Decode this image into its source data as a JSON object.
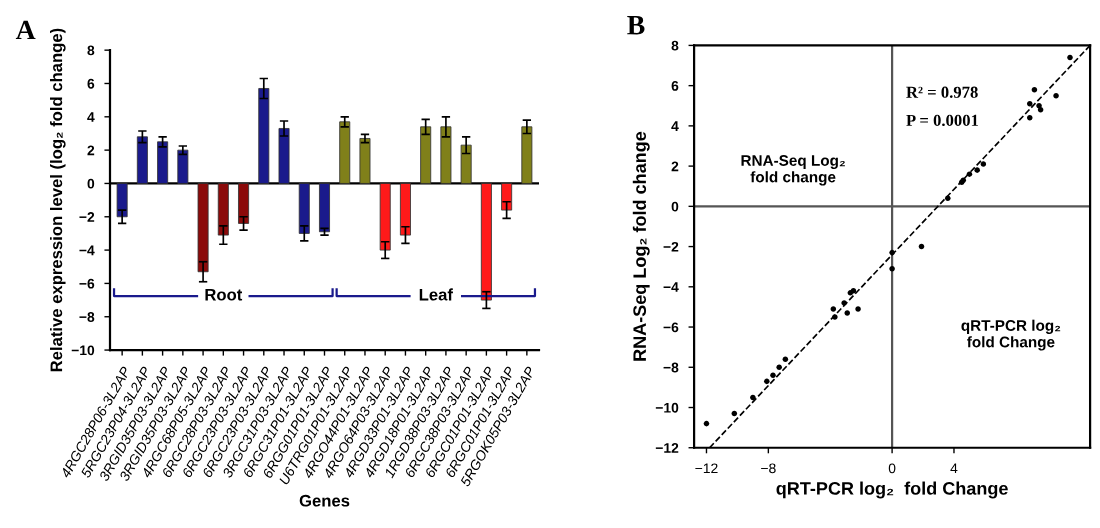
{
  "chart_data": [
    {
      "type": "bar",
      "title": "A",
      "xlabel": "Genes",
      "ylabel": "Relative expression level (log₂ fold change)",
      "categories": [
        "4RGC28P06-3L2AP",
        "5RGC23P04-3L2AP",
        "3RGID35P03-3L2AP",
        "3RGID35P03-3L2AP",
        "4RGC68P05-3L2AP",
        "6RGC28P03-3L2AP",
        "6RGC23P03-3L2AP",
        "6RGC23P03-3L2AP",
        "3RGC31P03-3L2AP",
        "6RGC31P01-3L2AP",
        "6RGG01P01-3L2AP",
        "U6TRG01P01-3L2AP",
        "4RGO44P01-3L2AP",
        "4RGO64P03-3L2AP",
        "4RGD33P01-3L2AP",
        "4RGD18P01-3L2AP",
        "1RGD38P03-3L2AP",
        "6RGC38P03-3L2AP",
        "6RGC01P01-3L2AP",
        "6RGC01P01-3L2AP",
        "5RGOK05P03-3L2AP"
      ],
      "values": [
        -2.0,
        2.8,
        2.5,
        2.0,
        -5.3,
        -3.1,
        -2.4,
        5.7,
        3.3,
        -3.0,
        -2.9,
        3.7,
        2.7,
        -4.0,
        -3.1,
        3.4,
        3.4,
        2.3,
        -7.0,
        -1.6,
        3.4
      ],
      "errors": [
        0.4,
        0.35,
        0.3,
        0.25,
        0.6,
        0.55,
        0.4,
        0.6,
        0.45,
        0.45,
        0.2,
        0.3,
        0.25,
        0.5,
        0.5,
        0.45,
        0.6,
        0.5,
        0.5,
        0.5,
        0.4
      ],
      "colors": [
        "#1a1a8c",
        "#1a1a8c",
        "#1a1a8c",
        "#1a1a8c",
        "#8b0a0a",
        "#8b0a0a",
        "#8b0a0a",
        "#1a1a8c",
        "#1a1a8c",
        "#1a1a8c",
        "#1a1a8c",
        "#80801a",
        "#80801a",
        "#ff1a1a",
        "#ff1a1a",
        "#80801a",
        "#80801a",
        "#80801a",
        "#ff1a1a",
        "#ff1a1a",
        "#80801a"
      ],
      "ylim": [
        -10,
        8
      ],
      "yticks": [
        -10,
        -8,
        -6,
        -4,
        -2,
        0,
        2,
        4,
        6,
        8
      ],
      "ref_lines": [
        {
          "axis": "y",
          "value": 0,
          "color": "#000000"
        }
      ],
      "annotations": [
        "Root",
        "Leaf"
      ],
      "grid": false,
      "legend": false
    },
    {
      "type": "scatter",
      "title": "B",
      "xlabel": "qRT-PCR log₂  fold Change",
      "ylabel": "RNA-Seq Log₂ fold change",
      "series": [
        {
          "type": "scatter",
          "color": "#000000",
          "marker": "circle",
          "x": [
            11.5,
            9.2,
            8.9,
            9.5,
            8.9,
            9.6,
            10.6,
            5.9,
            5.5,
            5.0,
            4.6,
            4.5,
            3.6,
            1.9,
            0,
            0,
            -2.5,
            -2.7,
            -2.2,
            -3.1,
            -2.9,
            -3.8,
            -3.7,
            -6.9,
            -7.3,
            -7.7,
            -8.1,
            -9.0,
            -10.2,
            -12.0
          ],
          "values": [
            7.4,
            5.8,
            5.1,
            5.0,
            4.4,
            4.8,
            5.5,
            2.1,
            1.8,
            1.6,
            1.3,
            1.2,
            0.4,
            -2.0,
            -2.3,
            -3.1,
            -4.2,
            -4.3,
            -5.1,
            -4.8,
            -5.3,
            -5.1,
            -5.5,
            -7.6,
            -8.0,
            -8.4,
            -8.7,
            -9.5,
            -10.3,
            -10.8
          ]
        },
        {
          "type": "line",
          "color": "#000000",
          "line_style": "dashed",
          "marker": "none",
          "x": [
            -11.8,
            12.8
          ],
          "values": [
            -12,
            8
          ]
        }
      ],
      "xlim": [
        -12.8,
        12.8
      ],
      "xticks": [
        -12,
        -8,
        0,
        4
      ],
      "ylim": [
        -12,
        8
      ],
      "yticks": [
        -12,
        -10,
        -8,
        -6,
        -4,
        -2,
        0,
        2,
        4,
        6,
        8
      ],
      "ref_lines": [
        {
          "axis": "x",
          "value": 0,
          "color": "#555555"
        },
        {
          "axis": "y",
          "value": 0,
          "color": "#555555"
        }
      ],
      "annotations": [
        "R² = 0.978",
        "P = 0.0001",
        "RNA-Seq Log₂\nfold change",
        "qRT-PCR log₂\nfold Change"
      ],
      "grid": false,
      "legend": false
    }
  ]
}
